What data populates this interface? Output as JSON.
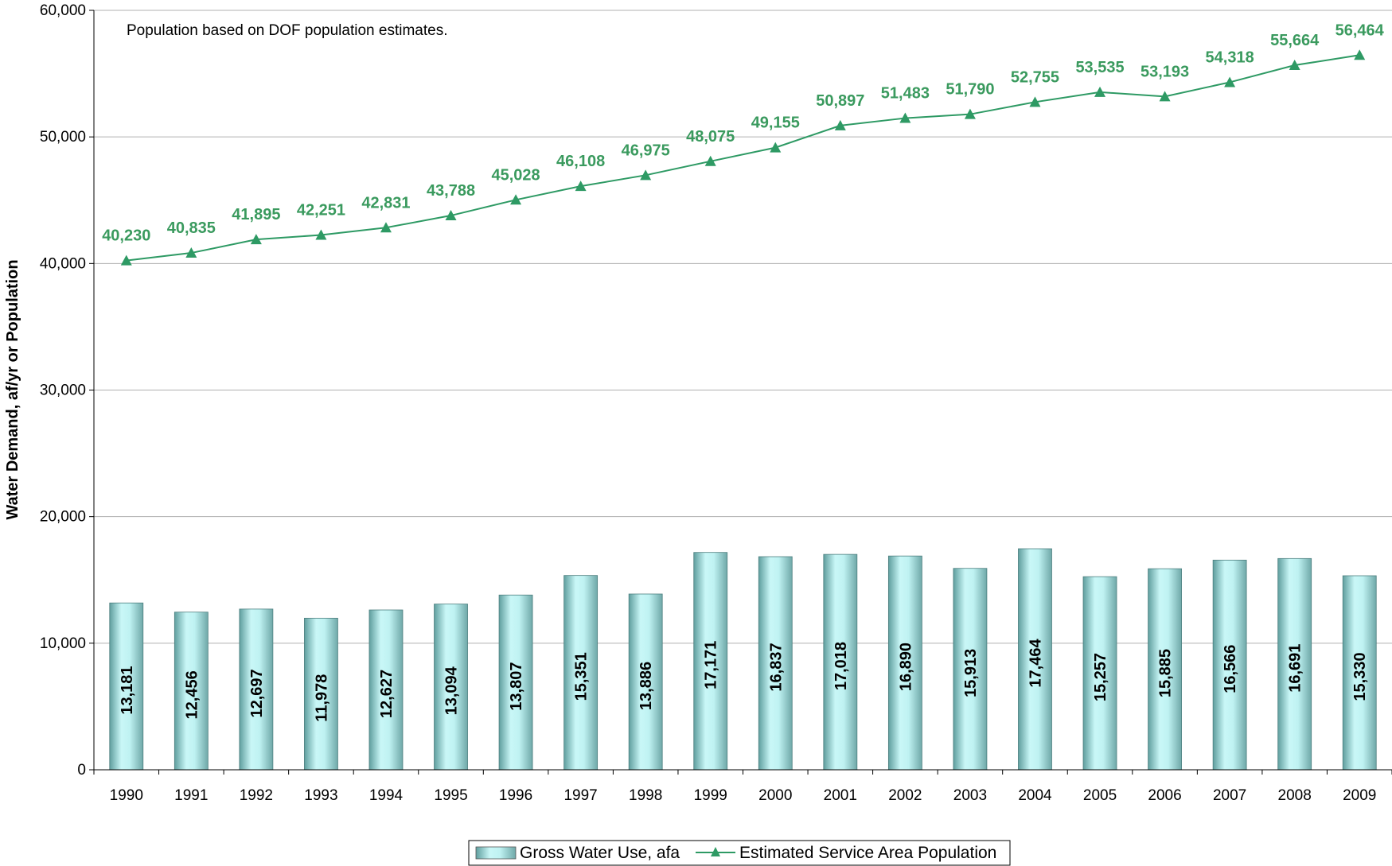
{
  "chart_data": {
    "type": "bar",
    "categories": [
      "1990",
      "1991",
      "1992",
      "1993",
      "1994",
      "1995",
      "1996",
      "1997",
      "1998",
      "1999",
      "2000",
      "2001",
      "2002",
      "2003",
      "2004",
      "2005",
      "2006",
      "2007",
      "2008",
      "2009"
    ],
    "series": [
      {
        "name": "Gross Water Use, afa",
        "type": "bar",
        "values": [
          13181,
          12456,
          12697,
          11978,
          12627,
          13094,
          13807,
          15351,
          13886,
          17171,
          16837,
          17018,
          16890,
          15913,
          17464,
          15257,
          15885,
          16566,
          16691,
          15330
        ],
        "labels": [
          "13,181",
          "12,456",
          "12,697",
          "11,978",
          "12,627",
          "13,094",
          "13,807",
          "15,351",
          "13,886",
          "17,171",
          "16,837",
          "17,018",
          "16,890",
          "15,913",
          "17,464",
          "15,257",
          "15,885",
          "16,566",
          "16,691",
          "15,330"
        ]
      },
      {
        "name": "Estimated Service Area Population",
        "type": "line",
        "values": [
          40230,
          40835,
          41895,
          42251,
          42831,
          43788,
          45028,
          46108,
          46975,
          48075,
          49155,
          50897,
          51483,
          51790,
          52755,
          53535,
          53193,
          54318,
          55664,
          56464
        ],
        "labels": [
          "40,230",
          "40,835",
          "41,895",
          "42,251",
          "42,831",
          "43,788",
          "45,028",
          "46,108",
          "46,975",
          "48,075",
          "49,155",
          "50,897",
          "51,483",
          "51,790",
          "52,755",
          "53,535",
          "53,193",
          "54,318",
          "55,664",
          "56,464"
        ]
      }
    ],
    "ylabel": "Water Demand, af/yr or Population",
    "ylim": [
      0,
      60000
    ],
    "yticks": [
      0,
      10000,
      20000,
      30000,
      40000,
      50000,
      60000
    ],
    "ytick_labels": [
      "0",
      "10,000",
      "20,000",
      "30,000",
      "40,000",
      "50,000",
      "60,000"
    ],
    "annotation": "Population based on DOF population estimates.",
    "grid": true,
    "legend_position": "bottom",
    "colors": {
      "bar": "#a8e6e6",
      "line": "#2e9a64",
      "grid": "#b0b0b0",
      "label": "#3a9a5e"
    }
  }
}
